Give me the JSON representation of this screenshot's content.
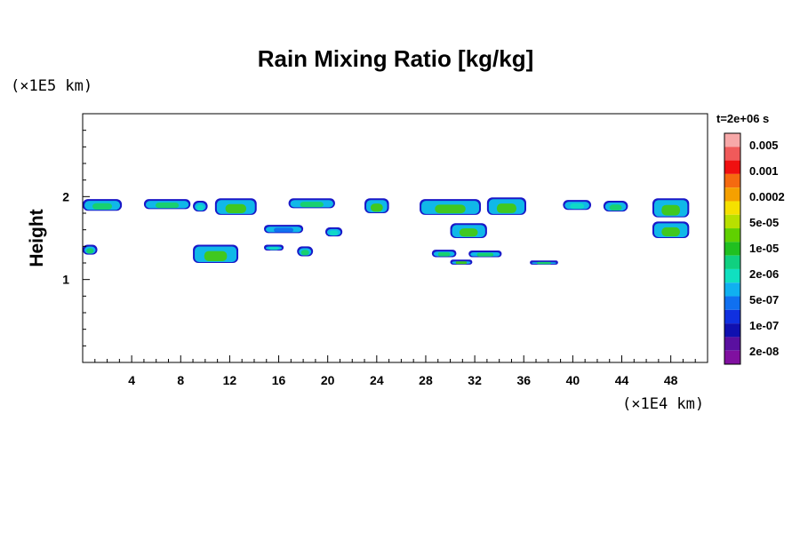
{
  "chart_data": {
    "type": "heatmap",
    "title": "Rain Mixing Ratio [kg/kg]",
    "xlabel": "",
    "ylabel": "Height",
    "x_unit_label": "(×1E4 km)",
    "y_unit_label": "(×1E5 km)",
    "xlim": [
      0,
      51
    ],
    "ylim": [
      0,
      3
    ],
    "x_ticks": [
      4,
      8,
      12,
      16,
      20,
      24,
      28,
      32,
      36,
      40,
      44,
      48
    ],
    "y_ticks": [
      1,
      2
    ],
    "time_label": "t=2e+06 s",
    "colorbar": {
      "labels": [
        "0.005",
        "0.001",
        "0.0002",
        "5e-05",
        "1e-05",
        "2e-06",
        "5e-07",
        "1e-07",
        "2e-08"
      ],
      "colors": [
        "#f7a8a8",
        "#f05a5a",
        "#f01010",
        "#f56a10",
        "#f5a000",
        "#f5e000",
        "#b8e000",
        "#60d000",
        "#20c020",
        "#10d080",
        "#10e0c0",
        "#10b0f0",
        "#1070f0",
        "#1030e0",
        "#1010b0",
        "#5a10a0",
        "#8010a0"
      ]
    },
    "cells": [
      {
        "x0": 0.0,
        "x1": 3.2,
        "y0": 1.83,
        "y1": 1.97,
        "level": "2e-06"
      },
      {
        "x0": 5.0,
        "x1": 8.8,
        "y0": 1.85,
        "y1": 1.97,
        "level": "2e-06"
      },
      {
        "x0": 9.0,
        "x1": 10.2,
        "y0": 1.82,
        "y1": 1.95,
        "level": "5e-07"
      },
      {
        "x0": 10.8,
        "x1": 14.2,
        "y0": 1.78,
        "y1": 1.98,
        "level": "1e-05"
      },
      {
        "x0": 16.8,
        "x1": 20.6,
        "y0": 1.86,
        "y1": 1.98,
        "level": "2e-06"
      },
      {
        "x0": 23.0,
        "x1": 25.0,
        "y0": 1.8,
        "y1": 1.98,
        "level": "1e-05"
      },
      {
        "x0": 27.5,
        "x1": 32.5,
        "y0": 1.78,
        "y1": 1.97,
        "level": "1e-05"
      },
      {
        "x0": 33.0,
        "x1": 36.2,
        "y0": 1.78,
        "y1": 1.99,
        "level": "1e-05"
      },
      {
        "x0": 39.2,
        "x1": 41.5,
        "y0": 1.84,
        "y1": 1.96,
        "level": "5e-07"
      },
      {
        "x0": 42.5,
        "x1": 44.5,
        "y0": 1.82,
        "y1": 1.95,
        "level": "2e-06"
      },
      {
        "x0": 46.5,
        "x1": 49.5,
        "y0": 1.75,
        "y1": 1.98,
        "level": "1e-05"
      },
      {
        "x0": 14.8,
        "x1": 18.0,
        "y0": 1.56,
        "y1": 1.66,
        "level": "1e-07"
      },
      {
        "x0": 19.8,
        "x1": 21.2,
        "y0": 1.52,
        "y1": 1.63,
        "level": "5e-07"
      },
      {
        "x0": 30.0,
        "x1": 33.0,
        "y0": 1.5,
        "y1": 1.68,
        "level": "1e-05"
      },
      {
        "x0": 46.5,
        "x1": 49.5,
        "y0": 1.5,
        "y1": 1.7,
        "level": "1e-05"
      },
      {
        "x0": 0.0,
        "x1": 1.2,
        "y0": 1.3,
        "y1": 1.42,
        "level": "2e-06"
      },
      {
        "x0": 9.0,
        "x1": 12.7,
        "y0": 1.2,
        "y1": 1.42,
        "level": "1e-05"
      },
      {
        "x0": 14.8,
        "x1": 16.4,
        "y0": 1.35,
        "y1": 1.42,
        "level": "5e-07"
      },
      {
        "x0": 17.5,
        "x1": 18.8,
        "y0": 1.28,
        "y1": 1.4,
        "level": "2e-06"
      },
      {
        "x0": 28.5,
        "x1": 30.5,
        "y0": 1.27,
        "y1": 1.36,
        "level": "2e-06"
      },
      {
        "x0": 31.5,
        "x1": 34.2,
        "y0": 1.27,
        "y1": 1.35,
        "level": "2e-06"
      },
      {
        "x0": 30.0,
        "x1": 31.8,
        "y0": 1.18,
        "y1": 1.24,
        "level": "1e-05"
      },
      {
        "x0": 36.5,
        "x1": 38.8,
        "y0": 1.18,
        "y1": 1.23,
        "level": "2e-06"
      }
    ]
  }
}
